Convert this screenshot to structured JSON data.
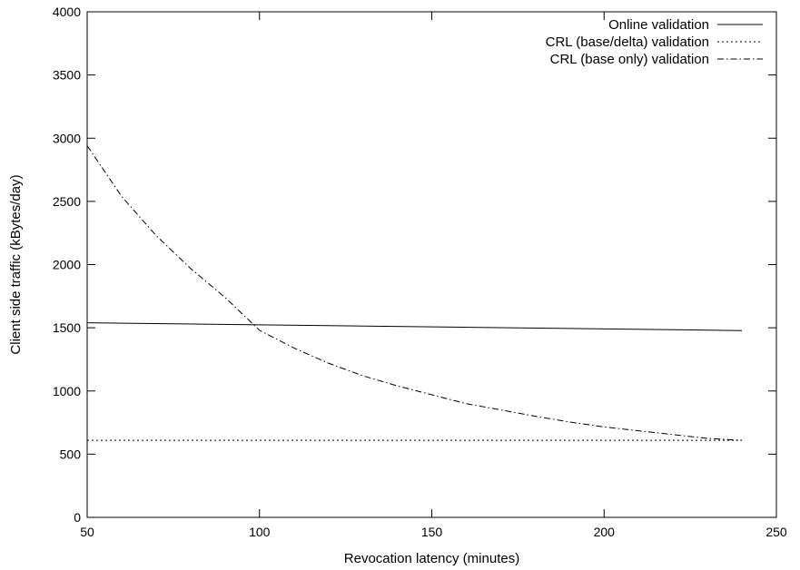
{
  "chart_data": {
    "type": "line",
    "title": "",
    "xlabel": "Revocation latency (minutes)",
    "ylabel": "Client side traffic (kBytes/day)",
    "xlim": [
      50,
      250
    ],
    "ylim": [
      0,
      4000
    ],
    "xticks": [
      50,
      100,
      150,
      200,
      250
    ],
    "yticks": [
      0,
      500,
      1000,
      1500,
      2000,
      2500,
      3000,
      3500,
      4000
    ],
    "grid": false,
    "legend_position": "top-right",
    "series": [
      {
        "name": "Online validation",
        "style": "solid",
        "x": [
          50,
          240
        ],
        "y": [
          1540,
          1478
        ]
      },
      {
        "name": "CRL (base/delta) validation",
        "style": "dotted",
        "x": [
          50,
          240
        ],
        "y": [
          610,
          610
        ]
      },
      {
        "name": "CRL (base only) validation",
        "style": "dash-dot",
        "x": [
          50,
          60,
          70,
          80,
          90,
          100,
          110,
          120,
          130,
          140,
          150,
          160,
          170,
          180,
          190,
          200,
          210,
          220,
          230,
          240
        ],
        "y": [
          2940,
          2540,
          2230,
          1970,
          1740,
          1480,
          1340,
          1220,
          1120,
          1040,
          970,
          900,
          850,
          800,
          755,
          715,
          685,
          655,
          625,
          610
        ]
      }
    ]
  }
}
